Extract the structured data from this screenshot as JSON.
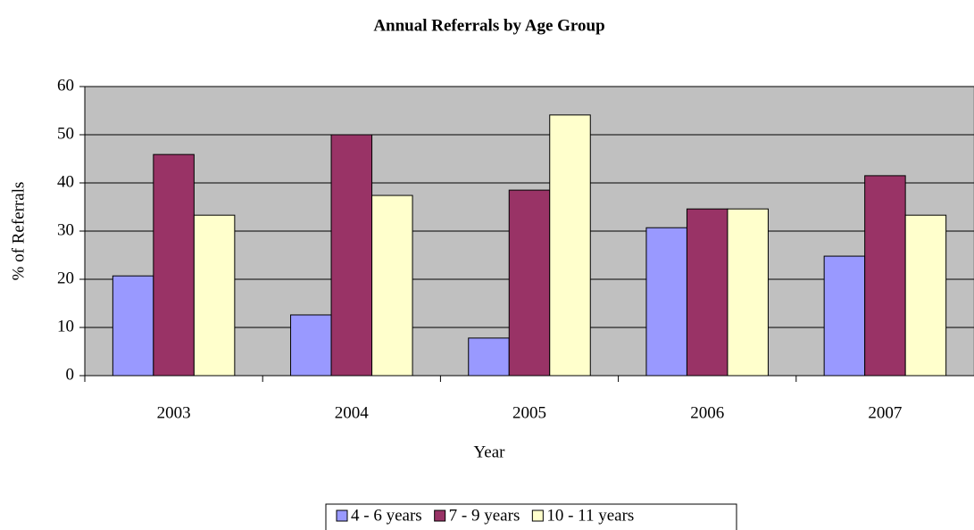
{
  "chart_data": {
    "type": "bar",
    "title": "Annual Referrals by Age Group",
    "x_label": "Year",
    "y_label": "% of Referrals",
    "categories": [
      "2003",
      "2004",
      "2005",
      "2006",
      "2007"
    ],
    "series": [
      {
        "name": "4 - 6 years",
        "color": "#9999ff",
        "values": [
          20.7,
          12.6,
          7.8,
          30.7,
          24.8
        ]
      },
      {
        "name": "7 - 9 years",
        "color": "#993366",
        "values": [
          45.9,
          50,
          38.5,
          34.6,
          41.5
        ]
      },
      {
        "name": "10 - 11 years",
        "color": "#ffffcc",
        "values": [
          33.3,
          37.4,
          54.1,
          34.6,
          33.3
        ]
      }
    ],
    "ylim": [
      0,
      60
    ],
    "yticks": [
      0,
      10,
      20,
      30,
      40,
      50,
      60
    ],
    "grid": true,
    "legend": "bottom"
  }
}
